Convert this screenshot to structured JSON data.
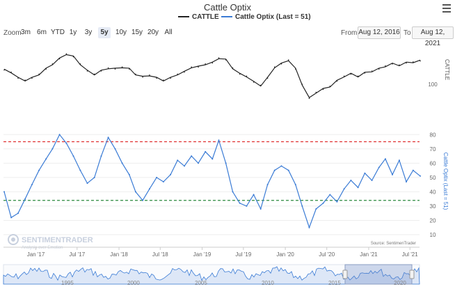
{
  "title": "Cattle Optix",
  "legend": [
    {
      "label": "CATTLE",
      "color": "#222222"
    },
    {
      "label": "Cattle Optix (Last = 51)",
      "color": "#3a7bd5"
    }
  ],
  "zoom": {
    "label": "Zoom",
    "buttons": [
      "3m",
      "6m",
      "YTD",
      "1y",
      "3y",
      "5y",
      "10y",
      "15y",
      "20y",
      "All"
    ],
    "active": "5y"
  },
  "range": {
    "from_label": "From",
    "from": "Aug 12, 2016",
    "to_label": "To",
    "to": "Aug 12, 2021"
  },
  "icons": {
    "menu": "hamburger-menu-icon"
  },
  "source": "Source: SentimenTrader",
  "watermark": {
    "brand": "SENTIMENTRADER",
    "tagline": "Analysis over Emotion"
  },
  "chart_data": [
    {
      "type": "line",
      "name": "price-panel",
      "series": [
        {
          "name": "CATTLE",
          "color": "#222222"
        }
      ],
      "x_range": [
        "2016-08-12",
        "2021-08-12"
      ],
      "ylabel": "CATTLE",
      "y_tick_labels": [
        "100"
      ],
      "points": [
        [
          "2016-08",
          114
        ],
        [
          "2016-09",
          112
        ],
        [
          "2016-10",
          106
        ],
        [
          "2016-11",
          104
        ],
        [
          "2016-12",
          106
        ],
        [
          "2017-01",
          110
        ],
        [
          "2017-02",
          115
        ],
        [
          "2017-03",
          120
        ],
        [
          "2017-04",
          125
        ],
        [
          "2017-05",
          130
        ],
        [
          "2017-06",
          127
        ],
        [
          "2017-07",
          120
        ],
        [
          "2017-08",
          113
        ],
        [
          "2017-09",
          110
        ],
        [
          "2017-10",
          113
        ],
        [
          "2017-11",
          116
        ],
        [
          "2017-12",
          115
        ],
        [
          "2018-01",
          117
        ],
        [
          "2018-02",
          115
        ],
        [
          "2018-03",
          110
        ],
        [
          "2018-04",
          107
        ],
        [
          "2018-05",
          109
        ],
        [
          "2018-06",
          106
        ],
        [
          "2018-07",
          104
        ],
        [
          "2018-08",
          106
        ],
        [
          "2018-09",
          110
        ],
        [
          "2018-10",
          112
        ],
        [
          "2018-11",
          117
        ],
        [
          "2018-12",
          117
        ],
        [
          "2019-01",
          120
        ],
        [
          "2019-02",
          121
        ],
        [
          "2019-03",
          126
        ],
        [
          "2019-04",
          124
        ],
        [
          "2019-05",
          116
        ],
        [
          "2019-06",
          110
        ],
        [
          "2019-07",
          108
        ],
        [
          "2019-08",
          102
        ],
        [
          "2019-09",
          99
        ],
        [
          "2019-10",
          106
        ],
        [
          "2019-11",
          117
        ],
        [
          "2019-12",
          120
        ],
        [
          "2020-01",
          124
        ],
        [
          "2020-02",
          115
        ],
        [
          "2020-03",
          100
        ],
        [
          "2020-04",
          86
        ],
        [
          "2020-05",
          92
        ],
        [
          "2020-06",
          95
        ],
        [
          "2020-07",
          98
        ],
        [
          "2020-08",
          103
        ],
        [
          "2020-09",
          108
        ],
        [
          "2020-10",
          110
        ],
        [
          "2020-11",
          108
        ],
        [
          "2020-12",
          111
        ],
        [
          "2021-01",
          113
        ],
        [
          "2021-02",
          115
        ],
        [
          "2021-03",
          118
        ],
        [
          "2021-04",
          120
        ],
        [
          "2021-05",
          119
        ],
        [
          "2021-06",
          121
        ],
        [
          "2021-07",
          122
        ],
        [
          "2021-08",
          123
        ]
      ]
    },
    {
      "type": "line",
      "name": "optix-panel",
      "series": [
        {
          "name": "Cattle Optix (Last = 51)",
          "color": "#3a7bd5"
        }
      ],
      "x_range": [
        "2016-08-12",
        "2021-08-12"
      ],
      "ylabel": "Cattle Optix (Last = 51)",
      "ylim": [
        10,
        80
      ],
      "y_ticks": [
        10,
        20,
        30,
        40,
        50,
        60,
        70,
        80
      ],
      "reference_lines": [
        {
          "value": 75,
          "color": "#e03131"
        },
        {
          "value": 34,
          "color": "#2b8a3e"
        }
      ],
      "points": [
        [
          "2016-08",
          40
        ],
        [
          "2016-09",
          22
        ],
        [
          "2016-10",
          25
        ],
        [
          "2016-11",
          35
        ],
        [
          "2016-12",
          45
        ],
        [
          "2017-01",
          55
        ],
        [
          "2017-02",
          63
        ],
        [
          "2017-03",
          70
        ],
        [
          "2017-04",
          80
        ],
        [
          "2017-05",
          74
        ],
        [
          "2017-06",
          65
        ],
        [
          "2017-07",
          55
        ],
        [
          "2017-08",
          46
        ],
        [
          "2017-09",
          50
        ],
        [
          "2017-10",
          65
        ],
        [
          "2017-11",
          78
        ],
        [
          "2017-12",
          70
        ],
        [
          "2018-01",
          60
        ],
        [
          "2018-02",
          52
        ],
        [
          "2018-03",
          40
        ],
        [
          "2018-04",
          34
        ],
        [
          "2018-05",
          42
        ],
        [
          "2018-06",
          50
        ],
        [
          "2018-07",
          47
        ],
        [
          "2018-08",
          52
        ],
        [
          "2018-09",
          62
        ],
        [
          "2018-10",
          58
        ],
        [
          "2018-11",
          65
        ],
        [
          "2018-12",
          60
        ],
        [
          "2019-01",
          68
        ],
        [
          "2019-02",
          63
        ],
        [
          "2019-03",
          76
        ],
        [
          "2019-04",
          60
        ],
        [
          "2019-05",
          40
        ],
        [
          "2019-06",
          32
        ],
        [
          "2019-07",
          30
        ],
        [
          "2019-08",
          38
        ],
        [
          "2019-09",
          28
        ],
        [
          "2019-10",
          45
        ],
        [
          "2019-11",
          55
        ],
        [
          "2019-12",
          58
        ],
        [
          "2020-01",
          55
        ],
        [
          "2020-02",
          45
        ],
        [
          "2020-03",
          30
        ],
        [
          "2020-04",
          15
        ],
        [
          "2020-05",
          28
        ],
        [
          "2020-06",
          32
        ],
        [
          "2020-07",
          38
        ],
        [
          "2020-08",
          33
        ],
        [
          "2020-09",
          42
        ],
        [
          "2020-10",
          48
        ],
        [
          "2020-11",
          43
        ],
        [
          "2020-12",
          53
        ],
        [
          "2021-01",
          48
        ],
        [
          "2021-02",
          57
        ],
        [
          "2021-03",
          63
        ],
        [
          "2021-04",
          52
        ],
        [
          "2021-05",
          62
        ],
        [
          "2021-06",
          47
        ],
        [
          "2021-07",
          55
        ],
        [
          "2021-08",
          51
        ]
      ]
    },
    {
      "type": "area",
      "name": "navigator",
      "series": [
        {
          "name": "Cattle Optix (Last = 51)",
          "color": "#3a7bd5"
        }
      ],
      "x_tick_labels": [
        "1995",
        "2000",
        "2005",
        "2010",
        "2015",
        "2020"
      ],
      "selection": [
        "2016-08-12",
        "2021-08-12"
      ]
    }
  ],
  "x_tick_labels": [
    "Jan '17",
    "Jul '17",
    "Jan '18",
    "Jul '18",
    "Jan '19",
    "Jul '19",
    "Jan '20",
    "Jul '20",
    "Jan '21",
    "Jul '21"
  ]
}
